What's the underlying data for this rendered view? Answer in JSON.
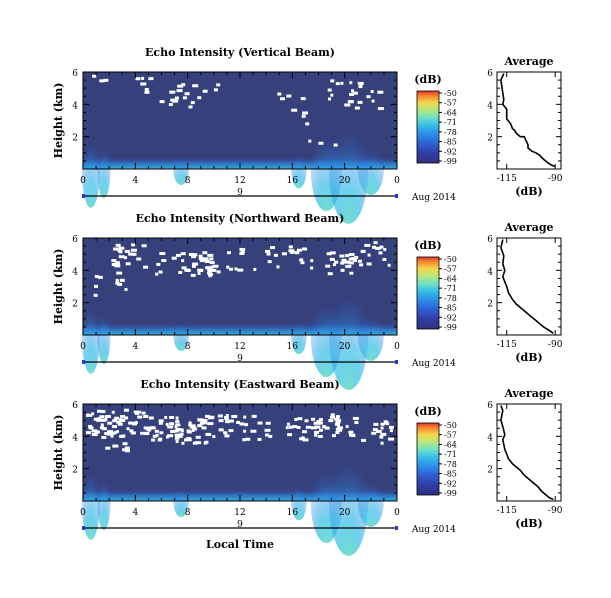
{
  "colors": {
    "background": "#36407a",
    "speckle": "#ffffff",
    "scale": [
      "#30307e",
      "#3040a8",
      "#2f62d6",
      "#2c8ee8",
      "#33bde6",
      "#6fe0c8",
      "#b9e87a",
      "#f3d54a",
      "#f58b2e",
      "#e3352a"
    ]
  },
  "chart_data": [
    {
      "type": "heatmap",
      "title": "Echo Intensity (Vertical Beam)",
      "ylabel": "Height (km)",
      "xlim": [
        0,
        24
      ],
      "ylim": [
        0,
        6
      ],
      "x_ticks": [
        "0",
        "4",
        "8",
        "12",
        "16",
        "20",
        "0"
      ],
      "y_ticks": [
        "6",
        "4",
        "2"
      ],
      "date_label": "Aug 2014",
      "date_tick": "9",
      "colorbar": {
        "unit": "(dB)",
        "labels": [
          "-50",
          "-57",
          "-64",
          "-71",
          "-78",
          "-85",
          "-92",
          "-99"
        ]
      },
      "average": {
        "title": "Average",
        "xlabel": "(dB)",
        "x_ticks": [
          "-115",
          "-90"
        ],
        "y_ticks": [
          "6",
          "4",
          "2"
        ],
        "xlim": [
          -120,
          -87
        ],
        "ylim": [
          0,
          6
        ],
        "x": [
          -116.5,
          -118,
          -117,
          -116.5,
          -117,
          -115,
          -115,
          -113,
          -112,
          -111,
          -110,
          -108,
          -106,
          -104,
          -104,
          -102,
          -100,
          -98,
          -96,
          -94,
          -92,
          -90
        ],
        "y": [
          5.9,
          5.5,
          4.7,
          4.3,
          4.0,
          3.7,
          3.1,
          2.8,
          2.5,
          2.4,
          2.2,
          2.0,
          2.0,
          1.5,
          1.3,
          1.1,
          1.0,
          0.85,
          0.6,
          0.4,
          0.25,
          0.15
        ]
      }
    },
    {
      "type": "heatmap",
      "title": "Echo Intensity (Northward Beam)",
      "ylabel": "Height (km)",
      "xlim": [
        0,
        24
      ],
      "ylim": [
        0,
        6
      ],
      "x_ticks": [
        "0",
        "4",
        "8",
        "12",
        "16",
        "20",
        "0"
      ],
      "y_ticks": [
        "6",
        "4",
        "2"
      ],
      "date_label": "Aug 2014",
      "date_tick": "9",
      "colorbar": {
        "unit": "(dB)",
        "labels": [
          "-50",
          "-57",
          "-64",
          "-71",
          "-78",
          "-85",
          "-92",
          "-99"
        ]
      },
      "average": {
        "title": "Average",
        "xlabel": "(dB)",
        "x_ticks": [
          "-115",
          "-90"
        ],
        "y_ticks": [
          "6",
          "4",
          "2"
        ],
        "xlim": [
          -120,
          -87
        ],
        "ylim": [
          0,
          6
        ],
        "x": [
          -117,
          -118,
          -116.5,
          -117,
          -116,
          -117,
          -115,
          -114,
          -112,
          -110,
          -108,
          -106,
          -104,
          -102,
          -100,
          -98,
          -96,
          -94,
          -92,
          -91
        ],
        "y": [
          5.9,
          5.4,
          4.9,
          4.4,
          4.0,
          3.6,
          3.0,
          2.6,
          2.2,
          1.9,
          1.7,
          1.5,
          1.3,
          1.1,
          0.9,
          0.7,
          0.5,
          0.35,
          0.2,
          0.1
        ]
      }
    },
    {
      "type": "heatmap",
      "title": "Echo Intensity (Eastward Beam)",
      "ylabel": "Height (km)",
      "xlim": [
        0,
        24
      ],
      "ylim": [
        0,
        6
      ],
      "x_ticks": [
        "0",
        "4",
        "8",
        "12",
        "16",
        "20",
        "0"
      ],
      "y_ticks": [
        "6",
        "4",
        "2"
      ],
      "date_label": "Aug 2014",
      "date_tick": "9",
      "xlabel": "Local Time",
      "colorbar": {
        "unit": "(dB)",
        "labels": [
          "-50",
          "-57",
          "-64",
          "-71",
          "-78",
          "-85",
          "-92",
          "-99"
        ]
      },
      "average": {
        "title": "Average",
        "xlabel": "(dB)",
        "x_ticks": [
          "-115",
          "-90"
        ],
        "y_ticks": [
          "6",
          "4",
          "2"
        ],
        "xlim": [
          -120,
          -87
        ],
        "ylim": [
          0,
          6
        ],
        "x": [
          -118,
          -117,
          -118,
          -117,
          -116,
          -117,
          -116,
          -115,
          -114,
          -112,
          -110,
          -108,
          -106,
          -104,
          -101,
          -99,
          -97,
          -95,
          -93,
          -91
        ],
        "y": [
          5.9,
          5.6,
          5.0,
          4.6,
          4.1,
          3.8,
          3.2,
          2.9,
          2.6,
          2.3,
          2.1,
          1.9,
          1.6,
          1.4,
          1.1,
          0.9,
          0.6,
          0.4,
          0.2,
          0.1
        ]
      }
    }
  ]
}
